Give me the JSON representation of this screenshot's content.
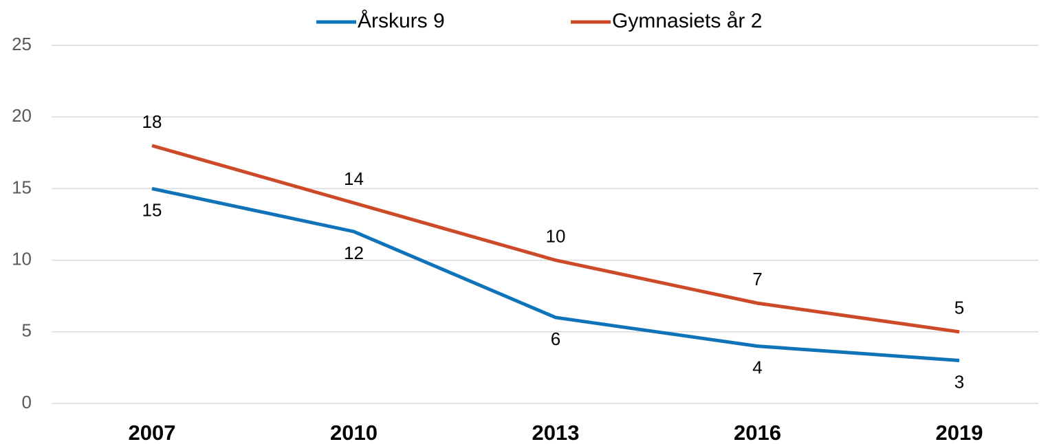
{
  "chart_data": {
    "type": "line",
    "categories": [
      "2007",
      "2010",
      "2013",
      "2016",
      "2019"
    ],
    "series": [
      {
        "name": "Årskurs 9",
        "color": "#0f73b9",
        "values": [
          15,
          12,
          6,
          4,
          3
        ]
      },
      {
        "name": "Gymnasiets år 2",
        "color": "#cc4a28",
        "values": [
          18,
          14,
          10,
          7,
          5
        ]
      }
    ],
    "ylim": [
      0,
      25
    ],
    "yticks": [
      0,
      5,
      10,
      15,
      20,
      25
    ],
    "grid": true,
    "legend": "top"
  }
}
